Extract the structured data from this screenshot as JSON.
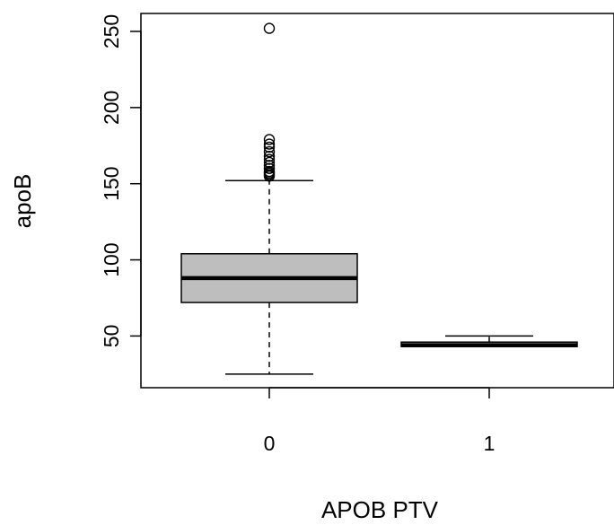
{
  "chart_data": {
    "type": "box",
    "xlabel": "APOB PTV",
    "ylabel": "apoB",
    "categories": [
      "0",
      "1"
    ],
    "ylim": [
      20,
      257
    ],
    "yticks": [
      50,
      100,
      150,
      200,
      250
    ],
    "box_color": "#bebebe",
    "boxes": [
      {
        "category": "0",
        "whisker_low": 25,
        "q1": 72,
        "median": 88,
        "q3": 104,
        "whisker_high": 152,
        "outliers": [
          155,
          156,
          157,
          158,
          160,
          162,
          164,
          166,
          168,
          171,
          174,
          176,
          179,
          252
        ]
      },
      {
        "category": "1",
        "whisker_low": 43,
        "q1": 43,
        "median": 44,
        "q3": 46,
        "whisker_high": 50,
        "outliers": []
      }
    ]
  }
}
